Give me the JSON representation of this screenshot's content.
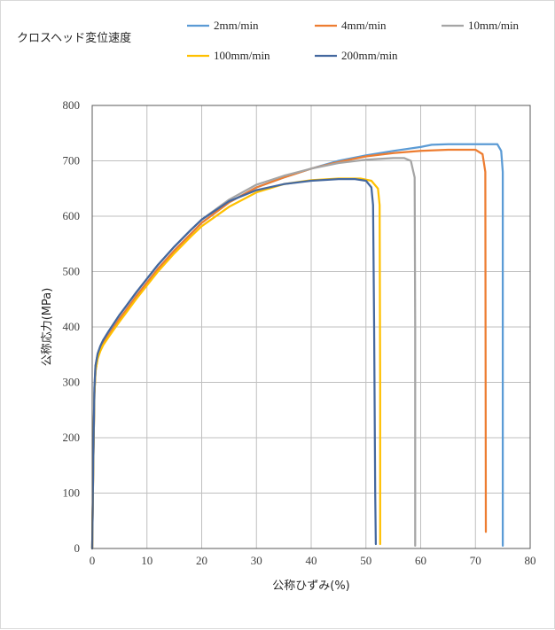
{
  "chart_data": {
    "type": "line",
    "legend_title": "クロスヘッド変位速度",
    "xlabel": "公称ひずみ(%)",
    "ylabel": "公称応力(MPa)",
    "xlim": [
      0,
      80
    ],
    "ylim": [
      0,
      800
    ],
    "xticks": [
      0,
      10,
      20,
      30,
      40,
      50,
      60,
      70,
      80
    ],
    "yticks": [
      0,
      100,
      200,
      300,
      400,
      500,
      600,
      700,
      800
    ],
    "grid": "vertical and horizontal",
    "legend_position": "top",
    "series": [
      {
        "name": "2mm/min",
        "color": "#5b9bd5",
        "x": [
          0,
          0.2,
          0.4,
          0.6,
          1.0,
          1.5,
          2,
          3,
          4,
          5,
          6,
          8,
          10,
          12,
          15,
          18,
          20,
          25,
          30,
          35,
          40,
          45,
          50,
          55,
          60,
          62,
          65,
          70,
          74,
          74.7,
          75.0,
          75.0
        ],
        "y": [
          0,
          150,
          280,
          320,
          345,
          360,
          370,
          385,
          400,
          415,
          428,
          455,
          480,
          505,
          538,
          568,
          588,
          625,
          652,
          670,
          686,
          700,
          710,
          718,
          725,
          729,
          730,
          730,
          730,
          718,
          680,
          5
        ]
      },
      {
        "name": "4mm/min",
        "color": "#ed7d31",
        "x": [
          0,
          0.2,
          0.4,
          0.6,
          1.0,
          1.5,
          2,
          3,
          4,
          5,
          6,
          8,
          10,
          12,
          15,
          18,
          20,
          25,
          30,
          35,
          40,
          45,
          50,
          55,
          60,
          65,
          70,
          71.3,
          71.8,
          71.9
        ],
        "y": [
          0,
          150,
          280,
          320,
          345,
          360,
          370,
          385,
          400,
          415,
          428,
          455,
          480,
          505,
          538,
          568,
          588,
          625,
          652,
          670,
          686,
          698,
          708,
          714,
          718,
          720,
          720,
          712,
          680,
          30
        ]
      },
      {
        "name": "10mm/min",
        "color": "#a5a5a5",
        "x": [
          0,
          0.2,
          0.4,
          0.6,
          1.0,
          1.5,
          2,
          3,
          4,
          5,
          6,
          8,
          10,
          12,
          15,
          18,
          20,
          25,
          30,
          35,
          40,
          45,
          50,
          55,
          57,
          58.2,
          58.9,
          59.0,
          59.0
        ],
        "y": [
          0,
          160,
          290,
          330,
          352,
          366,
          376,
          392,
          407,
          422,
          435,
          462,
          487,
          512,
          545,
          575,
          594,
          630,
          657,
          673,
          686,
          696,
          702,
          705,
          705,
          700,
          670,
          400,
          5
        ]
      },
      {
        "name": "100mm/min",
        "color": "#ffc000",
        "x": [
          0,
          0.2,
          0.4,
          0.6,
          1.0,
          1.5,
          2,
          3,
          4,
          5,
          6,
          8,
          10,
          12,
          15,
          18,
          20,
          25,
          30,
          35,
          40,
          45,
          49,
          51,
          52.2,
          52.5,
          52.6,
          52.6
        ],
        "y": [
          0,
          150,
          280,
          320,
          343,
          357,
          367,
          382,
          396,
          410,
          423,
          450,
          475,
          500,
          533,
          563,
          582,
          617,
          643,
          658,
          665,
          668,
          668,
          664,
          650,
          620,
          300,
          8
        ]
      },
      {
        "name": "200mm/min",
        "color": "#44689f",
        "x": [
          0,
          0.2,
          0.4,
          0.6,
          1.0,
          1.5,
          2,
          3,
          4,
          5,
          6,
          8,
          10,
          12,
          15,
          18,
          20,
          25,
          30,
          35,
          40,
          45,
          48,
          50,
          51.0,
          51.3,
          51.5,
          51.7,
          51.8
        ],
        "y": [
          0,
          160,
          290,
          330,
          352,
          366,
          376,
          392,
          407,
          422,
          435,
          462,
          487,
          512,
          545,
          575,
          594,
          627,
          647,
          658,
          664,
          667,
          667,
          664,
          652,
          620,
          400,
          100,
          8
        ]
      }
    ]
  }
}
